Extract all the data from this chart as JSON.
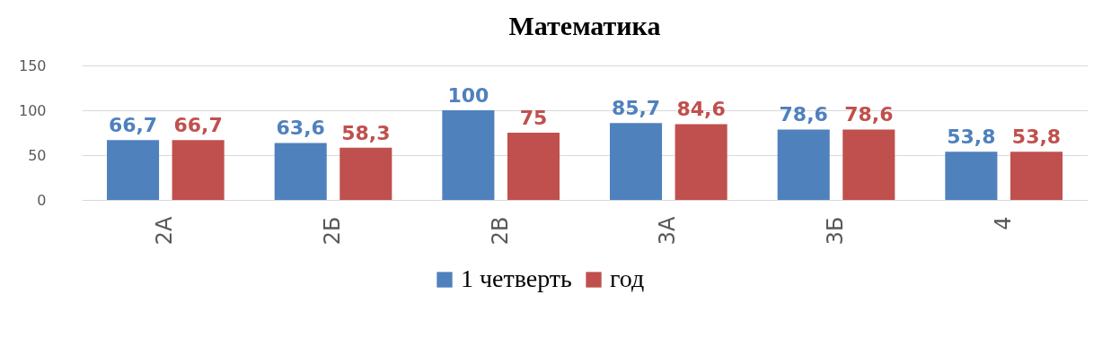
{
  "chart_data": {
    "type": "bar",
    "title": "Математика",
    "categories": [
      "2А",
      "2Б",
      "2В",
      "3А",
      "3Б",
      "4"
    ],
    "series": [
      {
        "name": "1 четверть",
        "color": "#4f81bd",
        "values": [
          66.7,
          63.6,
          100,
          85.7,
          78.6,
          53.8
        ],
        "value_labels": [
          "66,7",
          "63,6",
          "100",
          "85,7",
          "78,6",
          "53,8"
        ]
      },
      {
        "name": "год",
        "color": "#c0504d",
        "values": [
          66.7,
          58.3,
          75,
          84.6,
          78.6,
          53.8
        ],
        "value_labels": [
          "66,7",
          "58,3",
          "75",
          "84,6",
          "78,6",
          "53,8"
        ]
      }
    ],
    "ylim": [
      0,
      150
    ],
    "yticks": [
      0,
      50,
      100,
      150
    ],
    "grid": "y",
    "legend": "bottom"
  }
}
